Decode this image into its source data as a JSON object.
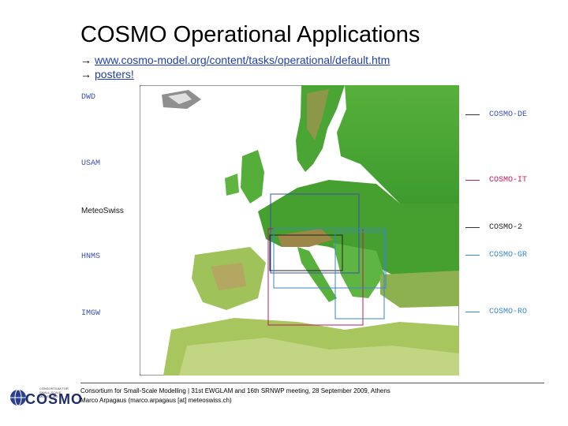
{
  "title": "COSMO Operational Applications",
  "links": [
    {
      "arrow": "→",
      "text": "www.cosmo-model.org/content/tasks/operational/default.htm"
    },
    {
      "arrow": "→",
      "text": "posters!"
    }
  ],
  "left_labels": [
    "DWD",
    "USAM",
    "MeteoSwiss",
    "HNMS",
    "IMGW"
  ],
  "right_labels": [
    {
      "text": "COSMO-DE",
      "color": "#3a4fb0"
    },
    {
      "text": "COSMO-IT",
      "color": "#c2185b"
    },
    {
      "text": "COSMO-2",
      "color": "#222222"
    },
    {
      "text": "COSMO-GR",
      "color": "#3a87c8"
    },
    {
      "text": "COSMO-RO",
      "color": "#3a87c8"
    }
  ],
  "footer": {
    "line1": "Consortium for Small-Scale Modelling | 31st EWGLAM and 16th SRNWP meeting, 28 September 2009, Athens",
    "line2": "Marco Arpagaus (marco.arpagaus [at] meteoswiss.ch)"
  },
  "logo": {
    "word": "COSMO",
    "tagline": "CONSORTIUM FOR SMALL-SCALE MODELLING"
  },
  "colors": {
    "link": "#1f3fa8",
    "sea": "#ffffff",
    "lowland": "#3d9b2e",
    "highland": "#b09a56"
  }
}
